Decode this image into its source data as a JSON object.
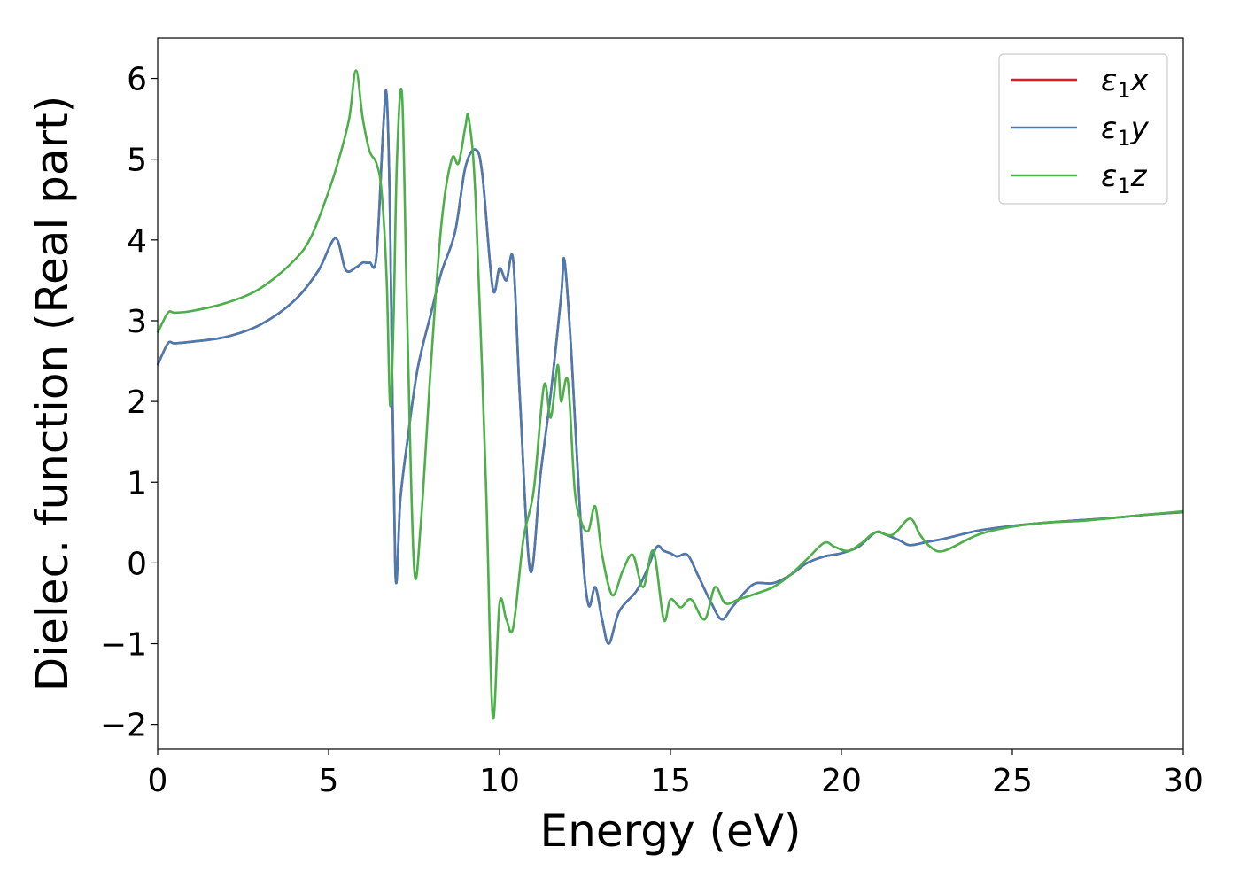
{
  "chart_data": {
    "type": "line",
    "title": "",
    "xlabel": "Energy (eV)",
    "ylabel": "Dielec. function (Real part)",
    "xlim": [
      0,
      30
    ],
    "ylim": [
      -2.3,
      6.5
    ],
    "xticks": [
      0,
      5,
      10,
      15,
      20,
      25,
      30
    ],
    "xtick_labels": [
      "0",
      "5",
      "10",
      "15",
      "20",
      "25",
      "30"
    ],
    "yticks": [
      -2,
      -1,
      0,
      1,
      2,
      3,
      4,
      5,
      6
    ],
    "ytick_labels": [
      "−2",
      "−1",
      "0",
      "1",
      "2",
      "3",
      "4",
      "5",
      "6"
    ],
    "grid": false,
    "legend_position": "top-right",
    "series": [
      {
        "name": "ε1x",
        "legend_base": "ε",
        "legend_sub": "1",
        "legend_var": "x",
        "color": "#e41a1c",
        "x": [
          0,
          0.3,
          0.5,
          1,
          2,
          3,
          4,
          4.7,
          5.2,
          5.5,
          5.8,
          6.0,
          6.2,
          6.4,
          6.6,
          6.7,
          6.8,
          6.95,
          7.1,
          7.3,
          7.6,
          8,
          8.3,
          8.7,
          9.0,
          9.3,
          9.5,
          9.8,
          10.0,
          10.2,
          10.4,
          10.6,
          10.9,
          11.2,
          11.5,
          11.8,
          11.9,
          12.1,
          12.4,
          12.6,
          12.8,
          13.0,
          13.2,
          13.5,
          14.0,
          14.3,
          14.6,
          14.8,
          15.0,
          15.2,
          15.5,
          15.8,
          16.2,
          16.5,
          16.8,
          17.2,
          17.5,
          18.0,
          18.5,
          19.0,
          19.5,
          20.0,
          20.5,
          21.0,
          21.3,
          21.7,
          22.0,
          22.5,
          23.0,
          24.0,
          25.0,
          26.0,
          27.0,
          28.0,
          29.0,
          30.0
        ],
        "values": [
          2.45,
          2.72,
          2.72,
          2.74,
          2.8,
          2.95,
          3.25,
          3.62,
          4.02,
          3.63,
          3.66,
          3.72,
          3.72,
          3.8,
          5.4,
          5.78,
          4.2,
          -0.1,
          0.8,
          1.5,
          2.4,
          3.1,
          3.6,
          4.1,
          4.9,
          5.12,
          4.8,
          3.4,
          3.65,
          3.5,
          3.75,
          2.0,
          -0.1,
          1.1,
          2.1,
          3.3,
          3.75,
          2.6,
          0.3,
          -0.52,
          -0.3,
          -0.7,
          -1.0,
          -0.6,
          -0.35,
          -0.1,
          0.2,
          0.15,
          0.12,
          0.08,
          0.1,
          -0.15,
          -0.5,
          -0.7,
          -0.55,
          -0.35,
          -0.25,
          -0.25,
          -0.15,
          0.0,
          0.08,
          0.12,
          0.2,
          0.38,
          0.35,
          0.28,
          0.22,
          0.26,
          0.3,
          0.4,
          0.46,
          0.5,
          0.53,
          0.56,
          0.6,
          0.63
        ]
      },
      {
        "name": "ε1y",
        "legend_base": "ε",
        "legend_sub": "1",
        "legend_var": "y",
        "color": "#4a7bb0",
        "x": [
          0,
          0.3,
          0.5,
          1,
          2,
          3,
          4,
          4.7,
          5.2,
          5.5,
          5.8,
          6.0,
          6.2,
          6.4,
          6.6,
          6.7,
          6.8,
          6.95,
          7.1,
          7.3,
          7.6,
          8,
          8.3,
          8.7,
          9.0,
          9.3,
          9.5,
          9.8,
          10.0,
          10.2,
          10.4,
          10.6,
          10.9,
          11.2,
          11.5,
          11.8,
          11.9,
          12.1,
          12.4,
          12.6,
          12.8,
          13.0,
          13.2,
          13.5,
          14.0,
          14.3,
          14.6,
          14.8,
          15.0,
          15.2,
          15.5,
          15.8,
          16.2,
          16.5,
          16.8,
          17.2,
          17.5,
          18.0,
          18.5,
          19.0,
          19.5,
          20.0,
          20.5,
          21.0,
          21.3,
          21.7,
          22.0,
          22.5,
          23.0,
          24.0,
          25.0,
          26.0,
          27.0,
          28.0,
          29.0,
          30.0
        ],
        "values": [
          2.45,
          2.72,
          2.72,
          2.74,
          2.8,
          2.95,
          3.25,
          3.62,
          4.02,
          3.63,
          3.66,
          3.72,
          3.72,
          3.8,
          5.4,
          5.78,
          4.2,
          -0.1,
          0.8,
          1.5,
          2.4,
          3.1,
          3.6,
          4.1,
          4.9,
          5.12,
          4.8,
          3.4,
          3.65,
          3.5,
          3.75,
          2.0,
          -0.1,
          1.1,
          2.1,
          3.3,
          3.75,
          2.6,
          0.3,
          -0.52,
          -0.3,
          -0.7,
          -1.0,
          -0.6,
          -0.35,
          -0.1,
          0.2,
          0.15,
          0.12,
          0.08,
          0.1,
          -0.15,
          -0.5,
          -0.7,
          -0.55,
          -0.35,
          -0.25,
          -0.25,
          -0.15,
          0.0,
          0.08,
          0.12,
          0.2,
          0.38,
          0.35,
          0.28,
          0.22,
          0.26,
          0.3,
          0.4,
          0.46,
          0.5,
          0.53,
          0.56,
          0.6,
          0.63
        ]
      },
      {
        "name": "ε1z",
        "legend_base": "ε",
        "legend_sub": "1",
        "legend_var": "z",
        "color": "#4daf4a",
        "x": [
          0,
          0.3,
          0.5,
          1,
          2,
          3,
          4,
          4.5,
          5.0,
          5.3,
          5.6,
          5.8,
          6.0,
          6.2,
          6.4,
          6.55,
          6.7,
          6.8,
          6.9,
          7.0,
          7.15,
          7.3,
          7.5,
          7.7,
          8.0,
          8.3,
          8.6,
          8.8,
          9.0,
          9.1,
          9.3,
          9.6,
          9.8,
          10.0,
          10.2,
          10.4,
          10.7,
          11.0,
          11.3,
          11.5,
          11.7,
          11.8,
          12.0,
          12.2,
          12.4,
          12.6,
          12.8,
          13.0,
          13.3,
          13.6,
          13.9,
          14.2,
          14.5,
          14.8,
          15.0,
          15.3,
          15.6,
          16.0,
          16.3,
          16.6,
          17.0,
          17.5,
          18.0,
          18.5,
          19.0,
          19.5,
          19.8,
          20.2,
          20.6,
          21.0,
          21.5,
          22.0,
          22.3,
          22.6,
          23.0,
          24.0,
          25.0,
          26.0,
          27.0,
          28.0,
          29.0,
          30.0
        ],
        "values": [
          2.85,
          3.1,
          3.1,
          3.12,
          3.22,
          3.4,
          3.75,
          4.05,
          4.6,
          5.0,
          5.5,
          6.1,
          5.5,
          5.1,
          4.95,
          4.6,
          3.5,
          1.95,
          3.0,
          5.0,
          5.78,
          3.0,
          -0.05,
          0.5,
          2.5,
          4.2,
          5.0,
          4.95,
          5.4,
          5.5,
          4.5,
          1.0,
          -1.9,
          -0.5,
          -0.7,
          -0.8,
          0.3,
          0.9,
          2.2,
          1.8,
          2.45,
          2.0,
          2.25,
          0.9,
          0.5,
          0.4,
          0.7,
          0.1,
          -0.4,
          -0.1,
          0.1,
          -0.3,
          0.15,
          -0.7,
          -0.45,
          -0.55,
          -0.45,
          -0.7,
          -0.3,
          -0.5,
          -0.45,
          -0.38,
          -0.3,
          -0.15,
          0.05,
          0.25,
          0.2,
          0.15,
          0.25,
          0.38,
          0.35,
          0.55,
          0.35,
          0.2,
          0.15,
          0.35,
          0.45,
          0.5,
          0.52,
          0.56,
          0.6,
          0.64
        ]
      }
    ]
  }
}
